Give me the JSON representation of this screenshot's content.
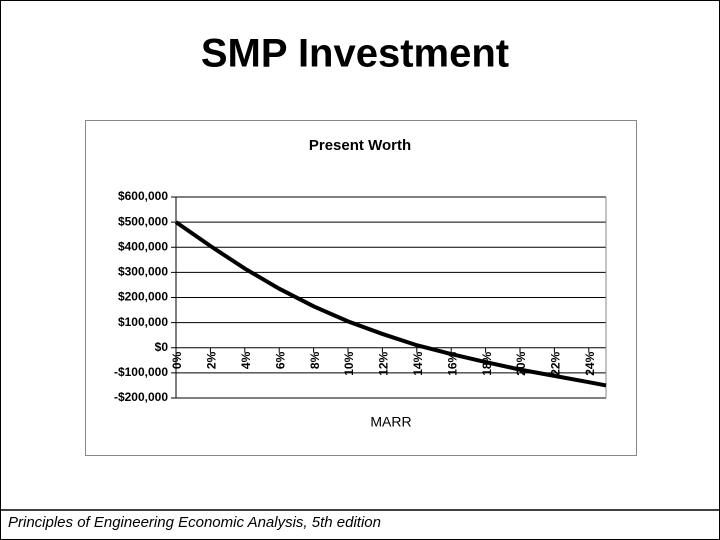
{
  "title": "SMP Investment",
  "footer": "Principles of Engineering Economic Analysis, 5th edition",
  "chart_data": {
    "type": "line",
    "title": "Present Worth",
    "x_label": "MARR",
    "x": [
      0,
      2,
      4,
      6,
      8,
      10,
      12,
      14,
      16,
      18,
      20,
      22,
      24,
      25
    ],
    "series": [
      {
        "name": "Present Worth",
        "color": "#000000",
        "values": [
          500000,
          405000,
          315000,
          235000,
          165000,
          105000,
          55000,
          10000,
          -25000,
          -57000,
          -87000,
          -112000,
          -137000,
          -150000
        ]
      }
    ],
    "xlim": [
      0,
      25
    ],
    "xticks": [
      {
        "value": 0,
        "label": "0%"
      },
      {
        "value": 2,
        "label": "2%"
      },
      {
        "value": 4,
        "label": "4%"
      },
      {
        "value": 6,
        "label": "6%"
      },
      {
        "value": 8,
        "label": "8%"
      },
      {
        "value": 10,
        "label": "10%"
      },
      {
        "value": 12,
        "label": "12%"
      },
      {
        "value": 14,
        "label": "14%"
      },
      {
        "value": 16,
        "label": "16%"
      },
      {
        "value": 18,
        "label": "18%"
      },
      {
        "value": 20,
        "label": "20%"
      },
      {
        "value": 22,
        "label": "22%"
      },
      {
        "value": 24,
        "label": "24%"
      }
    ],
    "ylim": [
      -200000,
      600000
    ],
    "yticks": [
      {
        "value": -200000,
        "label": "-$200,000"
      },
      {
        "value": -100000,
        "label": "-$100,000"
      },
      {
        "value": 0,
        "label": "$0"
      },
      {
        "value": 100000,
        "label": "$100,000"
      },
      {
        "value": 200000,
        "label": "$200,000"
      },
      {
        "value": 300000,
        "label": "$300,000"
      },
      {
        "value": 400000,
        "label": "$400,000"
      },
      {
        "value": 500000,
        "label": "$500,000"
      },
      {
        "value": 600000,
        "label": "$600,000"
      }
    ],
    "grid": true
  }
}
